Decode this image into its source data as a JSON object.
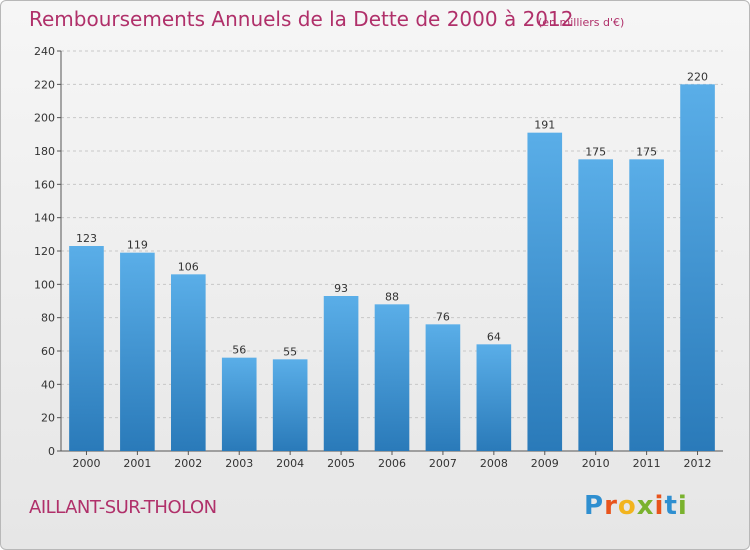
{
  "header": {
    "title": "Remboursements Annuels de la Dette de 2000 à 2012",
    "unit": "(en milliers d'€)"
  },
  "footer": {
    "commune": "AILLANT-SUR-THOLON",
    "brand": "Proxiti",
    "brand_letters": [
      {
        "char": "P",
        "color": "#2f8fd0"
      },
      {
        "char": "r",
        "color": "#e8541c"
      },
      {
        "char": "o",
        "color": "#f2b41e"
      },
      {
        "char": "x",
        "color": "#7ab22e"
      },
      {
        "char": "i",
        "color": "#e8541c"
      },
      {
        "char": "t",
        "color": "#2f8fd0"
      },
      {
        "char": "i",
        "color": "#7ab22e"
      }
    ]
  },
  "colors": {
    "title": "#b0306a",
    "bar_top": "#5aaee8",
    "bar_bottom": "#2a7ab9",
    "grid": "#c8c8c8"
  },
  "chart_data": {
    "type": "bar",
    "title": "Remboursements Annuels de la Dette de 2000 à 2012",
    "xlabel": "",
    "ylabel": "",
    "categories": [
      "2000",
      "2001",
      "2002",
      "2003",
      "2004",
      "2005",
      "2006",
      "2007",
      "2008",
      "2009",
      "2010",
      "2011",
      "2012"
    ],
    "values": [
      123,
      119,
      106,
      56,
      55,
      93,
      88,
      76,
      64,
      191,
      175,
      175,
      220
    ],
    "ylim": [
      0,
      240
    ],
    "yticks": [
      0,
      20,
      40,
      60,
      80,
      100,
      120,
      140,
      160,
      180,
      200,
      220,
      240
    ],
    "grid": true,
    "legend": "none"
  }
}
